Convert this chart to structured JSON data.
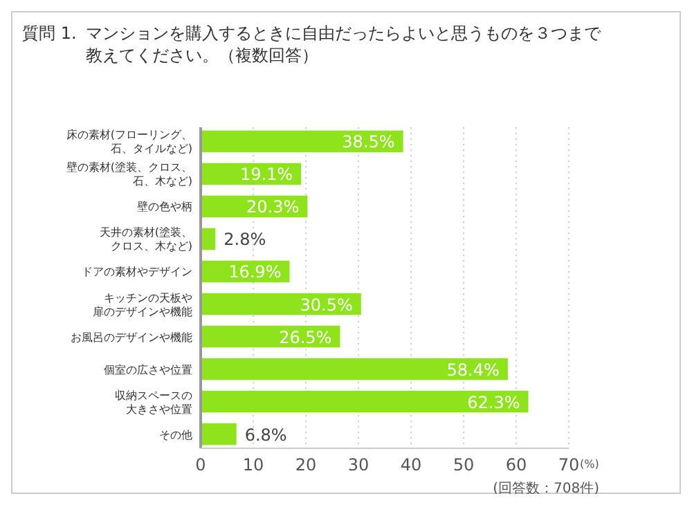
{
  "chart_data": {
    "type": "bar",
    "orientation": "horizontal",
    "title": "質問 1.",
    "subtitle": "マンションを購入するときに自由だったらよいと思うものを３つまで教えてください。（複数回答）",
    "categories": [
      "床の素材(フローリング、石、タイルなど)",
      "壁の素材(塗装、クロス、石、木など)",
      "壁の色や柄",
      "天井の素材(塗装、クロス、木など)",
      "ドアの素材やデザイン",
      "キッチンの天板や扉のデザインや機能",
      "お風呂のデザインや機能",
      "個室の広さや位置",
      "収納スペースの大きさや位置",
      "その他"
    ],
    "values": [
      38.5,
      19.1,
      20.3,
      2.8,
      16.9,
      30.5,
      26.5,
      58.4,
      62.3,
      6.8
    ],
    "value_labels": [
      "38.5%",
      "19.1%",
      "20.3%",
      "2.8%",
      "16.9%",
      "30.5%",
      "26.5%",
      "58.4%",
      "62.3%",
      "6.8%"
    ],
    "color": "#8fe31c",
    "xlim": [
      0,
      70
    ],
    "xticks": [
      0,
      10,
      20,
      30,
      40,
      50,
      60,
      70
    ],
    "xlabel": "(%)",
    "grid": "x",
    "annotations": [
      "(回答数：708件)"
    ]
  }
}
